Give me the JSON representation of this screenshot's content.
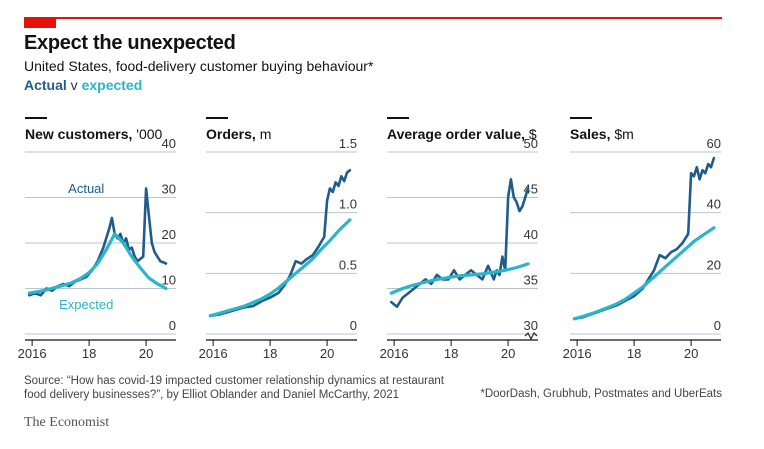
{
  "header": {
    "title": "Expect the unexpected",
    "subtitle": "United States, food-delivery customer buying behaviour*",
    "legend_actual": "Actual",
    "legend_v": " v ",
    "legend_expected": "expected"
  },
  "colors": {
    "actual": "#1f5c8b",
    "expected": "#2ab5c8",
    "accent": "#e3120b",
    "grid": "#b8c6d3"
  },
  "x_ticks": [
    {
      "value": 2016,
      "label": "2016"
    },
    {
      "value": 2018,
      "label": "18"
    },
    {
      "value": 2020,
      "label": "20"
    }
  ],
  "annotations": {
    "actual": "Actual",
    "expected": "Expected"
  },
  "chart_data": [
    {
      "type": "line",
      "title": "New customers,",
      "unit": " '000",
      "ylim": [
        0,
        40
      ],
      "yticks": [
        0,
        10,
        20,
        30,
        40
      ],
      "xlim": [
        2015.75,
        2021.05
      ],
      "series": [
        {
          "name": "Actual",
          "x": [
            2015.9,
            2016.1,
            2016.3,
            2016.5,
            2016.7,
            2016.9,
            2017.1,
            2017.3,
            2017.5,
            2017.7,
            2017.9,
            2018.1,
            2018.3,
            2018.5,
            2018.6,
            2018.7,
            2018.8,
            2018.9,
            2019.0,
            2019.1,
            2019.2,
            2019.3,
            2019.4,
            2019.5,
            2019.6,
            2019.7,
            2019.8,
            2019.9,
            2020.0,
            2020.1,
            2020.2,
            2020.3,
            2020.5,
            2020.7
          ],
          "y": [
            8.5,
            9,
            8.5,
            10,
            9.5,
            10.5,
            11,
            10.5,
            11.5,
            12,
            12.5,
            14,
            16,
            19,
            21,
            23,
            25.5,
            22,
            21,
            22,
            20,
            21,
            18.5,
            19,
            17,
            16,
            16.5,
            17,
            32,
            26,
            20,
            18,
            16,
            15.5
          ]
        },
        {
          "name": "Expected",
          "x": [
            2015.9,
            2016.2,
            2016.5,
            2016.8,
            2017.1,
            2017.4,
            2017.7,
            2018.0,
            2018.3,
            2018.6,
            2018.9,
            2019.2,
            2019.5,
            2019.8,
            2020.1,
            2020.4,
            2020.7
          ],
          "y": [
            9,
            9.3,
            9.7,
            10.2,
            10.7,
            11.3,
            12.2,
            13.5,
            15.5,
            18.5,
            22,
            20,
            17,
            14.5,
            12.3,
            11,
            10
          ]
        }
      ],
      "annotations": [
        {
          "series": "Actual",
          "text": "Actual",
          "x": 2017.9,
          "y": 31
        },
        {
          "series": "Expected",
          "text": "Expected",
          "x": 2017.9,
          "y": 5.5
        }
      ]
    },
    {
      "type": "line",
      "title": "Orders,",
      "unit": " m",
      "ylim": [
        0,
        1.5
      ],
      "yticks": [
        0,
        0.5,
        1.0,
        1.5
      ],
      "ytick_labels": [
        "0",
        "0.5",
        "1.0",
        "1.5"
      ],
      "xlim": [
        2015.75,
        2021.05
      ],
      "series": [
        {
          "name": "Actual",
          "x": [
            2015.9,
            2016.2,
            2016.5,
            2016.8,
            2017.1,
            2017.4,
            2017.7,
            2018.0,
            2018.3,
            2018.5,
            2018.7,
            2018.9,
            2019.1,
            2019.3,
            2019.5,
            2019.7,
            2019.9,
            2020.0,
            2020.1,
            2020.2,
            2020.3,
            2020.4,
            2020.5,
            2020.6,
            2020.7,
            2020.8
          ],
          "y": [
            0.15,
            0.16,
            0.18,
            0.2,
            0.22,
            0.23,
            0.27,
            0.3,
            0.34,
            0.4,
            0.48,
            0.6,
            0.58,
            0.62,
            0.65,
            0.72,
            0.8,
            1.1,
            1.2,
            1.17,
            1.25,
            1.22,
            1.3,
            1.26,
            1.33,
            1.35
          ]
        },
        {
          "name": "Expected",
          "x": [
            2015.9,
            2016.2,
            2016.5,
            2016.8,
            2017.1,
            2017.4,
            2017.7,
            2018.0,
            2018.3,
            2018.6,
            2018.9,
            2019.2,
            2019.5,
            2019.8,
            2020.1,
            2020.4,
            2020.8
          ],
          "y": [
            0.15,
            0.17,
            0.19,
            0.21,
            0.23,
            0.26,
            0.29,
            0.33,
            0.38,
            0.44,
            0.5,
            0.56,
            0.62,
            0.7,
            0.77,
            0.85,
            0.94
          ]
        }
      ]
    },
    {
      "type": "line",
      "title": "Average order value,",
      "unit": " $",
      "ylim": [
        30,
        50
      ],
      "yticks": [
        30,
        35,
        40,
        45,
        50
      ],
      "ytick_labels": [
        "30",
        "35",
        "40",
        "45",
        "50"
      ],
      "axis_break": true,
      "xlim": [
        2015.75,
        2021.05
      ],
      "series": [
        {
          "name": "Actual",
          "x": [
            2015.9,
            2016.1,
            2016.3,
            2016.5,
            2016.7,
            2016.9,
            2017.1,
            2017.3,
            2017.5,
            2017.7,
            2017.9,
            2018.1,
            2018.3,
            2018.5,
            2018.7,
            2018.9,
            2019.1,
            2019.3,
            2019.5,
            2019.6,
            2019.7,
            2019.8,
            2019.9,
            2020.0,
            2020.1,
            2020.2,
            2020.3,
            2020.4,
            2020.5,
            2020.6,
            2020.7
          ],
          "y": [
            33.5,
            33,
            34,
            34.5,
            35,
            35.5,
            36,
            35.5,
            36.5,
            36,
            36,
            37,
            36,
            36.5,
            37,
            36.5,
            36,
            37.5,
            36,
            37,
            36.5,
            38.5,
            37,
            45,
            47,
            45,
            44.5,
            43.5,
            44,
            45,
            46
          ]
        },
        {
          "name": "Expected",
          "x": [
            2015.9,
            2016.3,
            2016.7,
            2017.1,
            2017.5,
            2017.9,
            2018.3,
            2018.7,
            2019.1,
            2019.5,
            2019.9,
            2020.3,
            2020.7
          ],
          "y": [
            34.5,
            35,
            35.4,
            35.7,
            36,
            36.2,
            36.4,
            36.5,
            36.6,
            36.8,
            37,
            37.3,
            37.7
          ]
        }
      ]
    },
    {
      "type": "line",
      "title": "Sales,",
      "unit": " $m",
      "ylim": [
        0,
        60
      ],
      "yticks": [
        0,
        20,
        40,
        60
      ],
      "ytick_labels": [
        "0",
        "20",
        "40",
        "60"
      ],
      "xlim": [
        2015.75,
        2021.05
      ],
      "series": [
        {
          "name": "Actual",
          "x": [
            2015.9,
            2016.2,
            2016.5,
            2016.8,
            2017.1,
            2017.4,
            2017.7,
            2018.0,
            2018.3,
            2018.5,
            2018.7,
            2018.9,
            2019.1,
            2019.3,
            2019.5,
            2019.7,
            2019.9,
            2020.0,
            2020.1,
            2020.2,
            2020.3,
            2020.4,
            2020.5,
            2020.6,
            2020.7,
            2020.8
          ],
          "y": [
            5,
            5.5,
            6.5,
            7.5,
            8.5,
            9.5,
            11,
            12.5,
            15,
            18,
            21,
            26,
            25,
            27,
            28,
            30,
            33,
            53,
            52,
            55,
            51,
            54,
            53,
            56,
            55,
            58
          ]
        },
        {
          "name": "Expected",
          "x": [
            2015.9,
            2016.2,
            2016.5,
            2016.8,
            2017.1,
            2017.4,
            2017.7,
            2018.0,
            2018.3,
            2018.6,
            2018.9,
            2019.2,
            2019.5,
            2019.8,
            2020.1,
            2020.4,
            2020.8
          ],
          "y": [
            5,
            5.8,
            6.7,
            7.7,
            8.8,
            10,
            11.5,
            13.5,
            15.5,
            18,
            20.5,
            23,
            25.5,
            28,
            30.5,
            32.5,
            35
          ]
        }
      ]
    }
  ],
  "footer": {
    "source": "Source: “How has covid-19 impacted customer relationship dynamics at restaurant food delivery businesses?”, by Elliot Oblander and Daniel McCarthy, 2021",
    "footnote": "*DoorDash, Grubhub, Postmates and UberEats",
    "brand": "The Economist"
  }
}
